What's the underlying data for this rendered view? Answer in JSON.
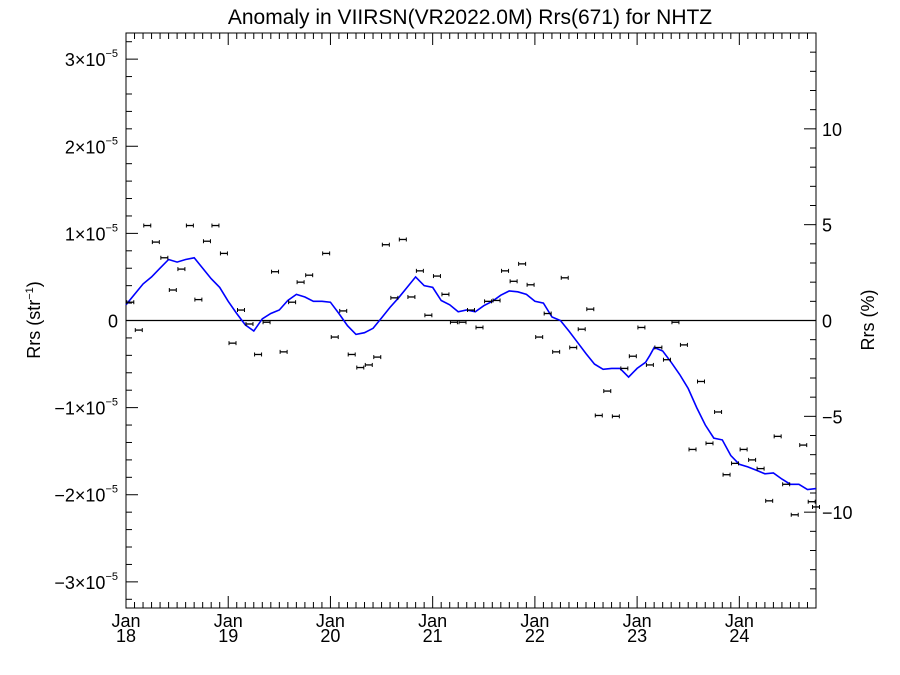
{
  "chart_data": {
    "type": "scatter",
    "title": "Anomaly in VIIRSN(VR2022.0M) Rrs(671) for NHTZ",
    "ylabel_left": {
      "base": "Rrs (str",
      "sup": "−1",
      "close": ")"
    },
    "ylabel_right": "Rrs (%)",
    "xlim": [
      2018.0,
      2024.75
    ],
    "ylim": [
      -3.3e-05,
      3.3e-05
    ],
    "ylim_right_percent": [
      -15,
      15
    ],
    "grid": false,
    "x_ticks": [
      {
        "x": 2018,
        "month": "Jan",
        "year": "18"
      },
      {
        "x": 2019,
        "month": "Jan",
        "year": "19"
      },
      {
        "x": 2020,
        "month": "Jan",
        "year": "20"
      },
      {
        "x": 2021,
        "month": "Jan",
        "year": "21"
      },
      {
        "x": 2022,
        "month": "Jan",
        "year": "22"
      },
      {
        "x": 2023,
        "month": "Jan",
        "year": "23"
      },
      {
        "x": 2024,
        "month": "Jan",
        "year": "24"
      }
    ],
    "y_ticks_left": [
      {
        "y": 3e-05,
        "mant": "3×10",
        "exp": "−5"
      },
      {
        "y": 2e-05,
        "mant": "2×10",
        "exp": "−5"
      },
      {
        "y": 1e-05,
        "mant": "1×10",
        "exp": "−5"
      },
      {
        "y": 0,
        "mant": "0",
        "exp": ""
      },
      {
        "y": -1e-05,
        "mant": "−1×10",
        "exp": "−5"
      },
      {
        "y": -2e-05,
        "mant": "−2×10",
        "exp": "−5"
      },
      {
        "y": -3e-05,
        "mant": "−3×10",
        "exp": "−5"
      }
    ],
    "y_ticks_right": [
      {
        "y": 10,
        "label": "10"
      },
      {
        "y": 5,
        "label": "5"
      },
      {
        "y": 0,
        "label": "0"
      },
      {
        "y": -5,
        "label": "−5"
      },
      {
        "y": -10,
        "label": "−10"
      }
    ],
    "series": [
      {
        "type": "scatter_errorbar",
        "color": "#000000",
        "points": [
          [
            2018.042,
            2.1e-06
          ],
          [
            2018.125,
            -1.1e-06
          ],
          [
            2018.208,
            1.09e-05
          ],
          [
            2018.292,
            9e-06
          ],
          [
            2018.375,
            7.2e-06
          ],
          [
            2018.458,
            3.5e-06
          ],
          [
            2018.542,
            5.9e-06
          ],
          [
            2018.625,
            1.09e-05
          ],
          [
            2018.708,
            2.4e-06
          ],
          [
            2018.792,
            9.1e-06
          ],
          [
            2018.875,
            1.09e-05
          ],
          [
            2018.958,
            7.7e-06
          ],
          [
            2019.042,
            -2.6e-06
          ],
          [
            2019.125,
            1.2e-06
          ],
          [
            2019.208,
            -4e-07
          ],
          [
            2019.292,
            -3.9e-06
          ],
          [
            2019.375,
            -2e-07
          ],
          [
            2019.458,
            5.6e-06
          ],
          [
            2019.542,
            -3.6e-06
          ],
          [
            2019.625,
            2.1e-06
          ],
          [
            2019.708,
            4.4e-06
          ],
          [
            2019.792,
            5.2e-06
          ],
          [
            2019.958,
            7.7e-06
          ],
          [
            2020.042,
            -1.9e-06
          ],
          [
            2020.125,
            1.1e-06
          ],
          [
            2020.208,
            -3.9e-06
          ],
          [
            2020.292,
            -5.4e-06
          ],
          [
            2020.375,
            -5.1e-06
          ],
          [
            2020.458,
            -4.2e-06
          ],
          [
            2020.542,
            8.7e-06
          ],
          [
            2020.625,
            2.6e-06
          ],
          [
            2020.708,
            9.3e-06
          ],
          [
            2020.792,
            2.7e-06
          ],
          [
            2020.875,
            5.7e-06
          ],
          [
            2020.958,
            6e-07
          ],
          [
            2021.042,
            5.1e-06
          ],
          [
            2021.125,
            3e-06
          ],
          [
            2021.208,
            -2e-07
          ],
          [
            2021.292,
            -2e-07
          ],
          [
            2021.375,
            1.2e-06
          ],
          [
            2021.458,
            -8e-07
          ],
          [
            2021.542,
            2.2e-06
          ],
          [
            2021.625,
            2.3e-06
          ],
          [
            2021.708,
            5.7e-06
          ],
          [
            2021.792,
            4.5e-06
          ],
          [
            2021.875,
            6.5e-06
          ],
          [
            2021.958,
            4.1e-06
          ],
          [
            2022.042,
            -1.9e-06
          ],
          [
            2022.125,
            8e-07
          ],
          [
            2022.208,
            -3.6e-06
          ],
          [
            2022.292,
            4.9e-06
          ],
          [
            2022.375,
            -3.1e-06
          ],
          [
            2022.458,
            -1e-06
          ],
          [
            2022.542,
            1.3e-06
          ],
          [
            2022.625,
            -1.09e-05
          ],
          [
            2022.708,
            -8.1e-06
          ],
          [
            2022.792,
            -1.1e-05
          ],
          [
            2022.875,
            -5.5e-06
          ],
          [
            2022.958,
            -4.1e-06
          ],
          [
            2023.042,
            -8e-07
          ],
          [
            2023.125,
            -5.1e-06
          ],
          [
            2023.208,
            -3.1e-06
          ],
          [
            2023.292,
            -4.5e-06
          ],
          [
            2023.375,
            -2e-07
          ],
          [
            2023.458,
            -2.8e-06
          ],
          [
            2023.542,
            -1.48e-05
          ],
          [
            2023.625,
            -7e-06
          ],
          [
            2023.708,
            -1.41e-05
          ],
          [
            2023.792,
            -1.05e-05
          ],
          [
            2023.875,
            -1.77e-05
          ],
          [
            2023.958,
            -1.64e-05
          ],
          [
            2024.042,
            -1.48e-05
          ],
          [
            2024.125,
            -1.6e-05
          ],
          [
            2024.208,
            -1.7e-05
          ],
          [
            2024.292,
            -2.07e-05
          ],
          [
            2024.375,
            -1.33e-05
          ],
          [
            2024.458,
            -1.88e-05
          ],
          [
            2024.542,
            -2.23e-05
          ],
          [
            2024.625,
            -1.43e-05
          ],
          [
            2024.708,
            -2.08e-05
          ],
          [
            2024.75,
            -2.14e-05
          ]
        ]
      },
      {
        "type": "line",
        "color": "#0000ff",
        "points": [
          [
            2018.0,
            1.8e-06
          ],
          [
            2018.083,
            3e-06
          ],
          [
            2018.167,
            4.2e-06
          ],
          [
            2018.25,
            5e-06
          ],
          [
            2018.333,
            6e-06
          ],
          [
            2018.417,
            7e-06
          ],
          [
            2018.5,
            6.7e-06
          ],
          [
            2018.583,
            7e-06
          ],
          [
            2018.667,
            7.2e-06
          ],
          [
            2018.75,
            6e-06
          ],
          [
            2018.833,
            4.8e-06
          ],
          [
            2018.917,
            3.8e-06
          ],
          [
            2019.0,
            2.2e-06
          ],
          [
            2019.083,
            8e-07
          ],
          [
            2019.167,
            -5e-07
          ],
          [
            2019.25,
            -1.2e-06
          ],
          [
            2019.333,
            2e-07
          ],
          [
            2019.417,
            8e-07
          ],
          [
            2019.5,
            1.2e-06
          ],
          [
            2019.583,
            2.3e-06
          ],
          [
            2019.667,
            3e-06
          ],
          [
            2019.75,
            2.7e-06
          ],
          [
            2019.833,
            2.2e-06
          ],
          [
            2019.917,
            2.2e-06
          ],
          [
            2020.0,
            2.1e-06
          ],
          [
            2020.083,
            8e-07
          ],
          [
            2020.167,
            -6e-07
          ],
          [
            2020.25,
            -1.6e-06
          ],
          [
            2020.333,
            -1.4e-06
          ],
          [
            2020.417,
            -9e-07
          ],
          [
            2020.5,
            3e-07
          ],
          [
            2020.583,
            1.5e-06
          ],
          [
            2020.667,
            2.6e-06
          ],
          [
            2020.75,
            3.8e-06
          ],
          [
            2020.833,
            5e-06
          ],
          [
            2020.917,
            4e-06
          ],
          [
            2021.0,
            3.8e-06
          ],
          [
            2021.083,
            2.3e-06
          ],
          [
            2021.167,
            1.8e-06
          ],
          [
            2021.25,
            1e-06
          ],
          [
            2021.333,
            1.2e-06
          ],
          [
            2021.417,
            1e-06
          ],
          [
            2021.5,
            1.7e-06
          ],
          [
            2021.583,
            2.2e-06
          ],
          [
            2021.667,
            2.9e-06
          ],
          [
            2021.75,
            3.4e-06
          ],
          [
            2021.833,
            3.3e-06
          ],
          [
            2021.917,
            3e-06
          ],
          [
            2022.0,
            2.2e-06
          ],
          [
            2022.083,
            2e-06
          ],
          [
            2022.167,
            4e-07
          ],
          [
            2022.25,
            0.0
          ],
          [
            2022.333,
            -1.2e-06
          ],
          [
            2022.417,
            -2.5e-06
          ],
          [
            2022.5,
            -3.8e-06
          ],
          [
            2022.583,
            -5e-06
          ],
          [
            2022.667,
            -5.6e-06
          ],
          [
            2022.75,
            -5.5e-06
          ],
          [
            2022.833,
            -5.5e-06
          ],
          [
            2022.917,
            -6.5e-06
          ],
          [
            2023.0,
            -5.5e-06
          ],
          [
            2023.083,
            -4.8e-06
          ],
          [
            2023.125,
            -4e-06
          ],
          [
            2023.167,
            -3.1e-06
          ],
          [
            2023.25,
            -3.5e-06
          ],
          [
            2023.333,
            -4.8e-06
          ],
          [
            2023.417,
            -6.2e-06
          ],
          [
            2023.5,
            -7.8e-06
          ],
          [
            2023.583,
            -1e-05
          ],
          [
            2023.667,
            -1.2e-05
          ],
          [
            2023.75,
            -1.35e-05
          ],
          [
            2023.833,
            -1.37e-05
          ],
          [
            2023.917,
            -1.55e-05
          ],
          [
            2024.0,
            -1.65e-05
          ],
          [
            2024.083,
            -1.68e-05
          ],
          [
            2024.167,
            -1.72e-05
          ],
          [
            2024.25,
            -1.76e-05
          ],
          [
            2024.333,
            -1.75e-05
          ],
          [
            2024.417,
            -1.82e-05
          ],
          [
            2024.5,
            -1.88e-05
          ],
          [
            2024.583,
            -1.88e-05
          ],
          [
            2024.667,
            -1.94e-05
          ],
          [
            2024.75,
            -1.93e-05
          ]
        ]
      }
    ]
  }
}
